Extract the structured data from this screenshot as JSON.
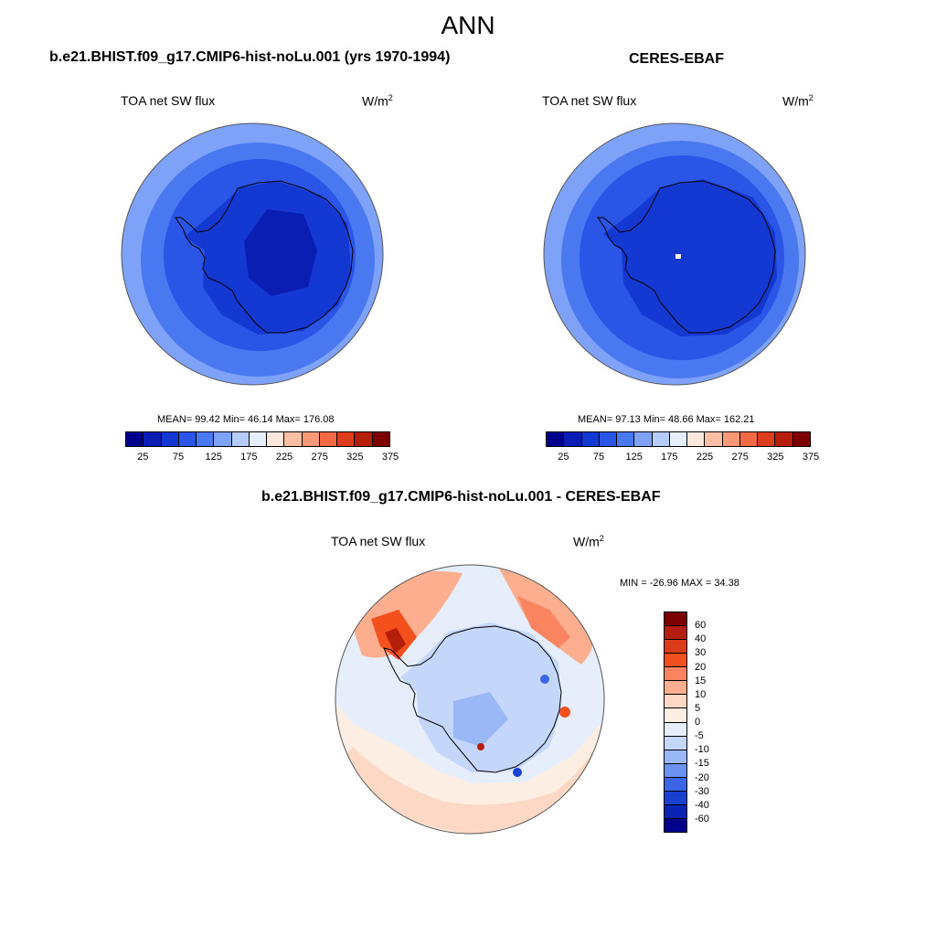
{
  "title": "ANN",
  "panels": [
    {
      "title": "b.e21.BHIST.f09_g17.CMIP6-hist-noLu.001 (yrs 1970-1994)",
      "variable": "TOA net SW flux",
      "units": "W/m",
      "units_sup": "2",
      "stats": "MEAN=  99.42  Min=  46.14  Max= 176.08"
    },
    {
      "title": "CERES-EBAF",
      "variable": "TOA net SW flux",
      "units": "W/m",
      "units_sup": "2",
      "stats": "MEAN=  97.13  Min=  48.66  Max= 162.21"
    },
    {
      "title": "b.e21.BHIST.f09_g17.CMIP6-hist-noLu.001 - CERES-EBAF",
      "variable": "TOA net SW flux",
      "units": "W/m",
      "units_sup": "2",
      "stats": "MIN = -26.96 MAX =  34.38"
    }
  ],
  "colorbar_abs": {
    "ticks": [
      "25",
      "75",
      "125",
      "175",
      "225",
      "275",
      "325",
      "375"
    ],
    "colors": [
      "#00008c",
      "#0a1eb4",
      "#1438d2",
      "#2a55e6",
      "#4a78f0",
      "#7ea2f8",
      "#b4ccfa",
      "#e6eefc",
      "#fde6da",
      "#fcbfa6",
      "#fa9878",
      "#f46a46",
      "#dc3c1c",
      "#b41e0a",
      "#7d0000"
    ]
  },
  "colorbar_diff": {
    "ticks": [
      "60",
      "40",
      "30",
      "20",
      "15",
      "10",
      "5",
      "0",
      "-5",
      "-10",
      "-15",
      "-20",
      "-30",
      "-40",
      "-60"
    ],
    "colors": [
      "#7d0000",
      "#b41e0a",
      "#dc3c1c",
      "#f4501e",
      "#fa8460",
      "#fcae8e",
      "#fdd8c4",
      "#fdeee4",
      "#e6eefc",
      "#c4d6fa",
      "#9ab8f6",
      "#6a92f0",
      "#3a66e6",
      "#1a40d2",
      "#0a24b4",
      "#00008c"
    ]
  }
}
